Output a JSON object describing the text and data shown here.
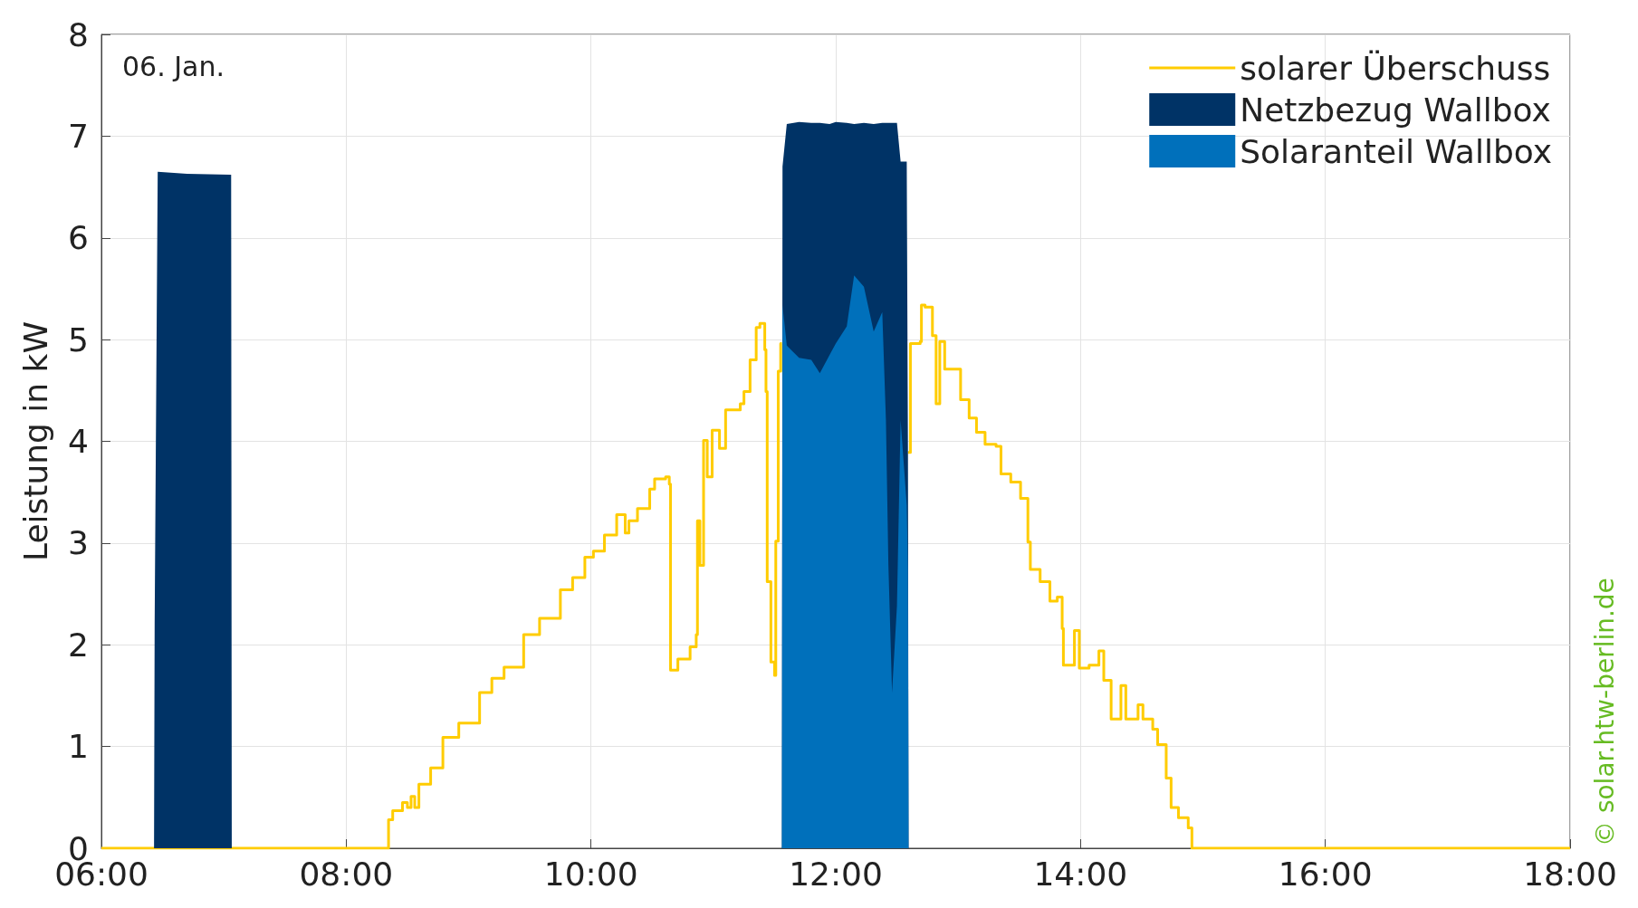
{
  "chart_data": {
    "type": "area",
    "stacked": true,
    "ylabel": "Leistung in kW",
    "annotations": [
      "06. Jan.",
      "© solar.htw-berlin.de"
    ],
    "x": [
      6,
      6.43,
      6.435,
      6.46,
      6.7,
      7.06,
      7.065,
      11.56,
      11.565,
      11.6,
      11.7,
      11.8,
      11.87,
      11.95,
      12.0,
      12.09,
      12.15,
      12.23,
      12.31,
      12.38,
      12.41,
      12.43,
      12.46,
      12.5,
      12.53,
      12.58,
      12.59,
      12.595,
      18
    ],
    "series": [
      {
        "name": "solarer Überschuss",
        "type": "step",
        "color": "#ffcc00",
        "x": [
          6,
          8.31,
          8.346,
          8.38,
          8.46,
          8.5,
          8.53,
          8.56,
          8.594,
          8.69,
          8.79,
          8.92,
          9.09,
          9.19,
          9.29,
          9.45,
          9.58,
          9.75,
          9.85,
          9.95,
          10.02,
          10.11,
          10.21,
          10.28,
          10.31,
          10.38,
          10.48,
          10.52,
          10.61,
          10.64,
          10.65,
          10.71,
          10.81,
          10.86,
          10.87,
          10.89,
          10.92,
          10.95,
          10.99,
          11.05,
          11.1,
          11.22,
          11.25,
          11.3,
          11.35,
          11.38,
          11.42,
          11.43,
          11.44,
          11.47,
          11.5,
          11.51,
          11.53,
          11.55,
          11.56,
          12.59,
          12.61,
          12.69,
          12.7,
          12.73,
          12.79,
          12.82,
          12.85,
          12.89,
          12.95,
          13.02,
          13.09,
          13.15,
          13.22,
          13.31,
          13.35,
          13.43,
          13.51,
          13.57,
          13.59,
          13.67,
          13.75,
          13.81,
          13.85,
          13.86,
          13.95,
          13.99,
          14.07,
          14.15,
          14.19,
          14.25,
          14.33,
          14.37,
          14.47,
          14.51,
          14.59,
          14.63,
          14.7,
          14.74,
          14.8,
          14.88,
          14.91,
          18
        ],
        "values": [
          0,
          0,
          0.28,
          0.37,
          0.45,
          0.4,
          0.51,
          0.4,
          0.63,
          0.79,
          1.09,
          1.23,
          1.53,
          1.67,
          1.78,
          2.1,
          2.26,
          2.54,
          2.66,
          2.86,
          2.92,
          3.08,
          3.28,
          3.1,
          3.22,
          3.34,
          3.53,
          3.63,
          3.65,
          3.58,
          1.75,
          1.86,
          1.98,
          2.1,
          3.22,
          2.78,
          4.01,
          3.65,
          4.11,
          3.93,
          4.31,
          4.37,
          4.49,
          4.8,
          5.12,
          5.16,
          4.9,
          4.49,
          2.62,
          1.83,
          1.7,
          3.02,
          4.69,
          4.96,
          null,
          3.89,
          4.96,
          4.98,
          5.34,
          5.32,
          5.04,
          4.37,
          4.98,
          4.71,
          4.71,
          4.41,
          4.23,
          4.09,
          3.97,
          3.95,
          3.68,
          3.6,
          3.44,
          3.01,
          2.74,
          2.62,
          2.43,
          2.47,
          2.16,
          1.8,
          2.14,
          1.77,
          1.8,
          1.94,
          1.65,
          1.27,
          1.6,
          1.27,
          1.41,
          1.27,
          1.17,
          1.02,
          0.69,
          0.4,
          0.3,
          0.2,
          0,
          0
        ]
      },
      {
        "name": "Solaranteil Wallbox",
        "color": "#0070bb",
        "values": [
          0,
          0,
          0,
          0,
          0,
          0,
          0,
          0,
          5.34,
          4.94,
          4.82,
          4.8,
          4.67,
          4.85,
          4.96,
          5.13,
          5.63,
          5.52,
          5.08,
          5.27,
          4.21,
          2.79,
          1.53,
          2.38,
          4.21,
          3.37,
          2.74,
          0,
          0
        ]
      },
      {
        "name": "Netzbezug Wallbox",
        "color": "#003366",
        "values": [
          0,
          0,
          2.2,
          6.65,
          6.63,
          6.62,
          0,
          0,
          1.36,
          2.18,
          2.32,
          2.33,
          2.46,
          2.27,
          2.18,
          2.0,
          1.49,
          1.61,
          2.04,
          1.86,
          2.92,
          4.34,
          5.6,
          4.75,
          2.54,
          3.38,
          1.14,
          0,
          0
        ]
      }
    ],
    "xlim": [
      6,
      18
    ],
    "xticks": [
      {
        "value": 6,
        "label": "06:00"
      },
      {
        "value": 8,
        "label": "08:00"
      },
      {
        "value": 10,
        "label": "10:00"
      },
      {
        "value": 12,
        "label": "12:00"
      },
      {
        "value": 14,
        "label": "14:00"
      },
      {
        "value": 16,
        "label": "16:00"
      },
      {
        "value": 18,
        "label": "18:00"
      }
    ],
    "ylim": [
      0,
      8
    ],
    "yticks": [
      0,
      1,
      2,
      3,
      4,
      5,
      6,
      7,
      8
    ],
    "grid": true,
    "legend": "top right",
    "marker": "none"
  }
}
